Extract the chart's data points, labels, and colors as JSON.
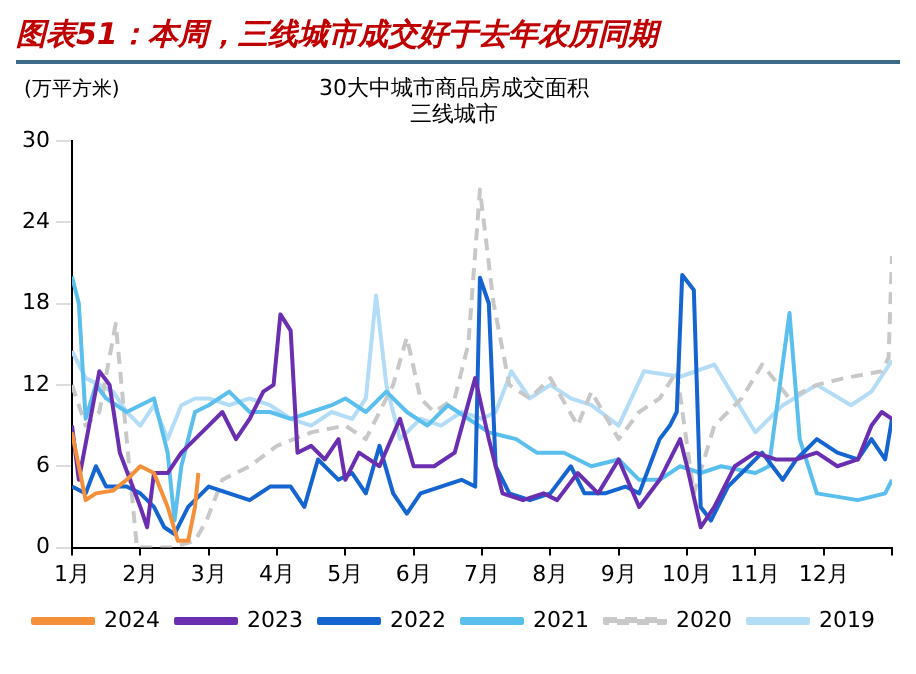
{
  "chart_data": {
    "type": "line",
    "title": "图表51：本周，三线城市成交好于去年农历同期",
    "subtitle": "30大中城市商品房成交面积",
    "annotations": [
      "三线城市"
    ],
    "ylabel": "(万平方米)",
    "xlim": [
      1,
      13
    ],
    "xticks": [
      {
        "value": 1,
        "label": "1月"
      },
      {
        "value": 2,
        "label": "2月"
      },
      {
        "value": 3,
        "label": "3月"
      },
      {
        "value": 4,
        "label": "4月"
      },
      {
        "value": 5,
        "label": "5月"
      },
      {
        "value": 6,
        "label": "6月"
      },
      {
        "value": 7,
        "label": "7月"
      },
      {
        "value": 8,
        "label": "8月"
      },
      {
        "value": 9,
        "label": "9月"
      },
      {
        "value": 10,
        "label": "10月"
      },
      {
        "value": 11,
        "label": "11月"
      },
      {
        "value": 12,
        "label": "12月"
      },
      {
        "value": 13,
        "label": null
      }
    ],
    "ylim": [
      0,
      30
    ],
    "yticks": [
      0,
      6,
      12,
      18,
      24,
      30
    ],
    "grid": false,
    "legend": "bottom",
    "marker": "none",
    "series": [
      {
        "name": "2019",
        "color": "#b3dcf7",
        "line_style": "solid",
        "x": [
          1,
          1.2,
          1.4,
          1.6,
          1.8,
          2.0,
          2.2,
          2.4,
          2.6,
          2.8,
          3.0,
          3.3,
          3.6,
          3.9,
          4.2,
          4.5,
          4.8,
          5.1,
          5.3,
          5.45,
          5.6,
          5.8,
          6.1,
          6.4,
          6.7,
          7.0,
          7.2,
          7.43,
          7.7,
          8.0,
          8.3,
          8.6,
          9.0,
          9.37,
          9.9,
          10.4,
          10.7,
          11.0,
          11.4,
          11.9,
          12.4,
          12.7,
          13.0
        ],
        "values": [
          14.5,
          12.5,
          12,
          11.5,
          10,
          9,
          10.5,
          8,
          10.5,
          11,
          11,
          10.5,
          11,
          10.5,
          9.5,
          9,
          10,
          9.5,
          11,
          18.6,
          12,
          8,
          9.5,
          9,
          10,
          9.5,
          10,
          13,
          11,
          12,
          11,
          10.5,
          9,
          13,
          12.6,
          13.5,
          11,
          8.5,
          10.5,
          12,
          10.5,
          11.5,
          13.8
        ]
      },
      {
        "name": "2020",
        "color": "#c8c8c8",
        "line_style": "dashed",
        "x": [
          1,
          1.2,
          1.4,
          1.64,
          1.8,
          1.95,
          2.2,
          2.45,
          2.8,
          2.97,
          3.2,
          3.6,
          4.0,
          4.5,
          5.0,
          5.3,
          5.7,
          5.9,
          6.1,
          6.3,
          6.6,
          6.8,
          6.97,
          7.17,
          7.4,
          7.7,
          8.0,
          8.4,
          8.6,
          9.0,
          9.3,
          9.6,
          9.85,
          10.1,
          10.4,
          10.8,
          11.1,
          11.5,
          11.9,
          12.3,
          12.85,
          12.95,
          13.0
        ],
        "values": [
          12,
          9,
          10,
          16.5,
          8,
          0,
          0,
          0,
          0.5,
          2,
          5,
          6,
          7.5,
          8.5,
          9,
          8,
          12,
          15.5,
          11,
          10,
          11,
          15,
          26.4,
          18,
          12,
          11,
          12.5,
          9,
          11.5,
          8,
          10,
          11,
          13,
          4,
          9,
          11,
          13.5,
          11,
          12,
          12.5,
          13,
          14,
          21.5
        ]
      },
      {
        "name": "2021",
        "color": "#5bbfee",
        "line_style": "solid",
        "x": [
          1,
          1.1,
          1.2,
          1.35,
          1.5,
          1.8,
          2.0,
          2.2,
          2.4,
          2.5,
          2.6,
          2.8,
          3.0,
          3.3,
          3.6,
          3.9,
          4.2,
          4.5,
          4.8,
          5.0,
          5.3,
          5.6,
          5.9,
          6.2,
          6.5,
          6.8,
          7.1,
          7.5,
          7.8,
          8.2,
          8.6,
          9.0,
          9.3,
          9.6,
          9.9,
          10.2,
          10.5,
          11.0,
          11.2,
          11.5,
          11.65,
          11.9,
          12.5,
          12.9,
          13.0
        ],
        "values": [
          20,
          18,
          9.5,
          12,
          11,
          10,
          10.5,
          11,
          7,
          2,
          6,
          10,
          10.5,
          11.5,
          10,
          10,
          9.5,
          10,
          10.5,
          11,
          10,
          11.5,
          10,
          9,
          10.5,
          9.5,
          8.5,
          8,
          7,
          7,
          6,
          6.5,
          5,
          5,
          6,
          5.5,
          6,
          5.5,
          6,
          17.3,
          8,
          4,
          3.5,
          4,
          5
        ]
      },
      {
        "name": "2022",
        "color": "#1565d0",
        "line_style": "solid",
        "x": [
          1,
          1.2,
          1.35,
          1.5,
          1.8,
          2.0,
          2.2,
          2.35,
          2.5,
          2.7,
          3.0,
          3.3,
          3.6,
          3.9,
          4.2,
          4.4,
          4.6,
          4.9,
          5.1,
          5.3,
          5.5,
          5.7,
          5.9,
          6.1,
          6.4,
          6.7,
          6.9,
          6.97,
          7.1,
          7.2,
          7.4,
          7.7,
          8.0,
          8.3,
          8.5,
          8.8,
          9.1,
          9.3,
          9.6,
          9.75,
          9.85,
          9.93,
          10.1,
          10.2,
          10.35,
          10.6,
          10.9,
          11.1,
          11.4,
          11.6,
          11.9,
          12.2,
          12.5,
          12.7,
          12.9,
          13.0
        ],
        "values": [
          4.5,
          4,
          6,
          4.5,
          4.5,
          4,
          3,
          1.5,
          1,
          3,
          4.5,
          4,
          3.5,
          4.5,
          4.5,
          3,
          6.5,
          5,
          5.5,
          4,
          7.5,
          4,
          2.5,
          4,
          4.5,
          5,
          4.5,
          19.9,
          18,
          6,
          4,
          3.5,
          4,
          6,
          4,
          4,
          4.5,
          4,
          8,
          9,
          10,
          20.1,
          19,
          3,
          2,
          4.5,
          6,
          7,
          5,
          6.5,
          8,
          7,
          6.5,
          8,
          6.5,
          9.5
        ]
      },
      {
        "name": "2023",
        "color": "#6a2fb0",
        "line_style": "solid",
        "x": [
          1,
          1.1,
          1.25,
          1.4,
          1.55,
          1.7,
          1.85,
          2.0,
          2.1,
          2.2,
          2.4,
          2.6,
          2.8,
          3.0,
          3.2,
          3.4,
          3.6,
          3.8,
          3.95,
          4.05,
          4.2,
          4.3,
          4.5,
          4.7,
          4.9,
          5.0,
          5.2,
          5.5,
          5.8,
          6.0,
          6.3,
          6.6,
          6.9,
          7.1,
          7.3,
          7.6,
          7.9,
          8.1,
          8.4,
          8.7,
          9.0,
          9.3,
          9.6,
          9.9,
          10.0,
          10.2,
          10.4,
          10.7,
          11.0,
          11.3,
          11.6,
          11.9,
          12.2,
          12.5,
          12.7,
          12.85,
          13.0
        ],
        "values": [
          9,
          5,
          9,
          13,
          12,
          7,
          5,
          3,
          1.5,
          5.5,
          5.5,
          7,
          8,
          9,
          10,
          8,
          9.5,
          11.5,
          12,
          17.2,
          16,
          7,
          7.5,
          6.5,
          8,
          5,
          7,
          6,
          9.5,
          6,
          6,
          7,
          12.5,
          8,
          4,
          3.5,
          4,
          3.5,
          5.5,
          4,
          6.5,
          3,
          5,
          8,
          6,
          1.5,
          3,
          6,
          7,
          6.5,
          6.5,
          7,
          6,
          6.5,
          9,
          10,
          9.5
        ]
      },
      {
        "name": "2024",
        "color": "#f5903a",
        "line_style": "solid",
        "x": [
          1,
          1.1,
          1.2,
          1.35,
          1.6,
          1.8,
          2.0,
          2.2,
          2.4,
          2.55,
          2.7,
          2.8,
          2.85
        ],
        "values": [
          8.5,
          6,
          3.5,
          4,
          4.2,
          5,
          6,
          5.5,
          3,
          0.5,
          0.5,
          3,
          5.5
        ]
      }
    ]
  }
}
